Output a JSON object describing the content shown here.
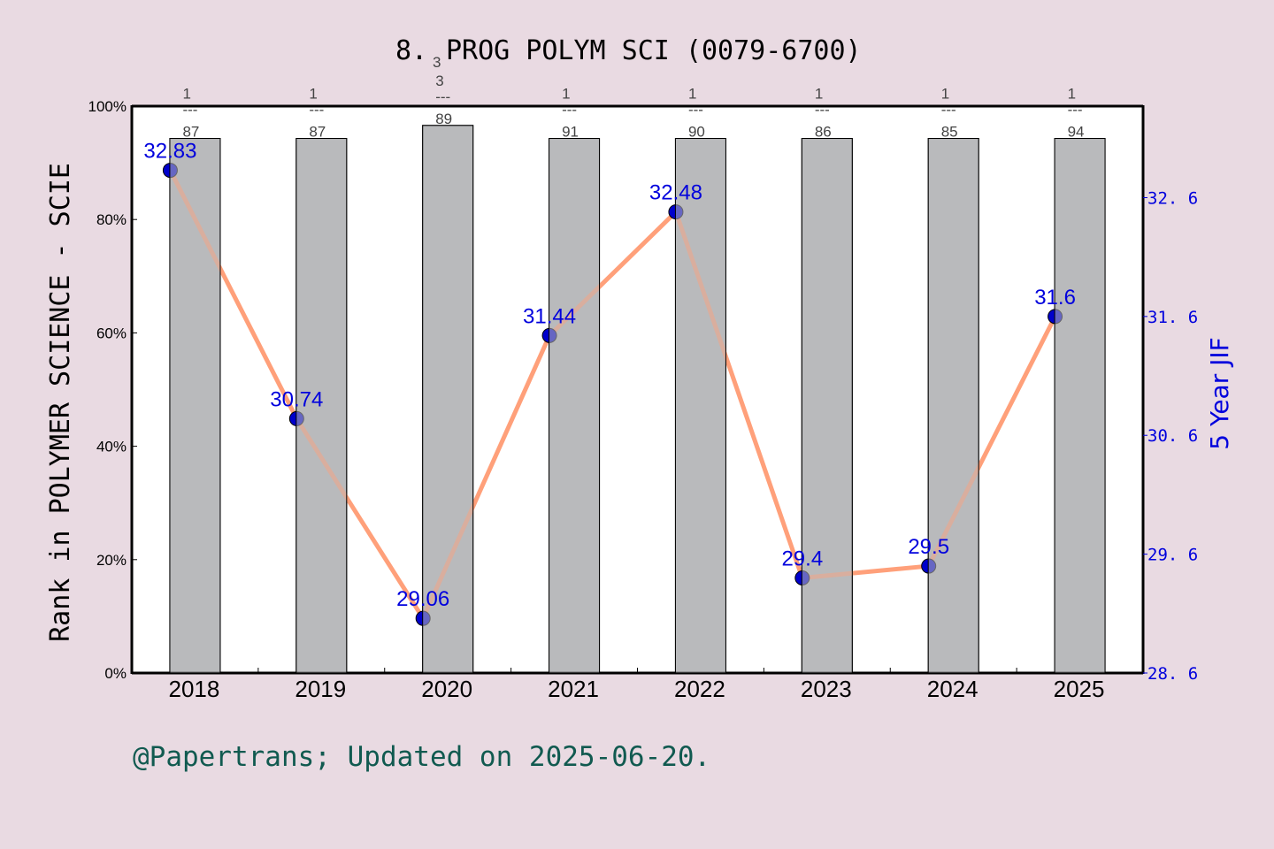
{
  "chart_data": {
    "type": "bar+line",
    "title": "8. PROG POLYM SCI (0079-6700)",
    "title_prefix": "8.",
    "title_superscript": "3",
    "title_main": "PROG POLYM SCI (0079-6700)",
    "categories": [
      "2018",
      "2019",
      "2020",
      "2021",
      "2022",
      "2023",
      "2024",
      "2025"
    ],
    "series": [
      {
        "name": "Rank in POLYMER SCIENCE - SCIE",
        "type": "bar",
        "axis": "left",
        "values": [
          94.3,
          94.3,
          96.6,
          94.3,
          94.3,
          94.3,
          94.3,
          94.3
        ],
        "rank_labels": [
          {
            "num": "1",
            "den": "87"
          },
          {
            "num": "1",
            "den": "87"
          },
          {
            "num": "3",
            "den": "89"
          },
          {
            "num": "1",
            "den": "91"
          },
          {
            "num": "1",
            "den": "90"
          },
          {
            "num": "1",
            "den": "86"
          },
          {
            "num": "1",
            "den": "85"
          },
          {
            "num": "1",
            "den": "94"
          }
        ],
        "color": "#b9babc"
      },
      {
        "name": "5 Year JIF",
        "type": "line",
        "axis": "right",
        "values": [
          32.83,
          30.74,
          29.06,
          31.44,
          32.48,
          29.4,
          29.5,
          31.6
        ],
        "labels": [
          "32.83",
          "30.74",
          "29.06",
          "31.44",
          "32.48",
          "29.4",
          "29.5",
          "31.6"
        ],
        "line_color": "#ffa07a",
        "marker_color": "#0000cc"
      }
    ],
    "ylabel": "Rank in POLYMER SCIENCE - SCIE",
    "y2label": "5 Year JIF",
    "yticks": [
      "0%",
      "20%",
      "40%",
      "60%",
      "80%",
      "100%"
    ],
    "ylim": [
      0,
      100
    ],
    "y2ticks": [
      "28.6",
      "29.6",
      "30.6",
      "31.6",
      "32.6"
    ],
    "y2lim": [
      28.6,
      33.37
    ],
    "grid": false,
    "legend": "none"
  },
  "footer": {
    "text": "@Papertrans; Updated on 2025-06-20."
  },
  "colors": {
    "background": "#e9dae2",
    "plot_bg": "#ffffff",
    "bar": "#b9babc",
    "line": "#ffa07a",
    "marker": "#0000cc",
    "right_axis": "#0000dd",
    "footer": "#115a50"
  }
}
